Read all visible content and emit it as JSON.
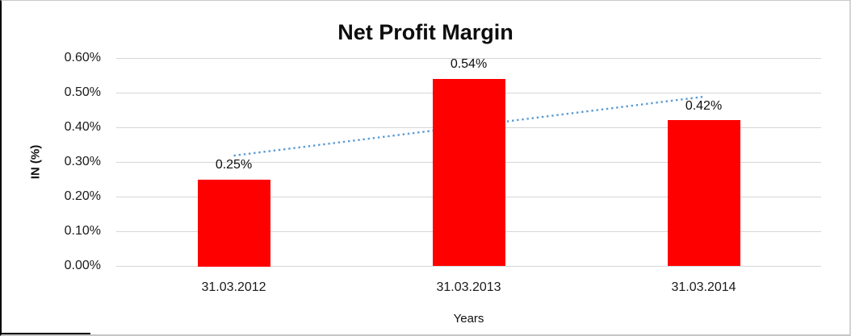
{
  "chart_data": {
    "type": "bar",
    "title": "Net Profit Margin",
    "xlabel": "Years",
    "ylabel": "IN (%)",
    "categories": [
      "31.03.2012",
      "31.03.2013",
      "31.03.2014"
    ],
    "values": [
      0.25,
      0.54,
      0.42
    ],
    "data_labels": [
      "0.25%",
      "0.54%",
      "0.42%"
    ],
    "yticks": [
      0.6,
      0.5,
      0.4,
      0.3,
      0.2,
      0.1,
      0.0
    ],
    "ytick_labels": [
      "0.60%",
      "0.50%",
      "0.40%",
      "0.30%",
      "0.20%",
      "0.10%",
      "0.00%"
    ],
    "ylim": [
      0,
      0.6
    ],
    "grid": true,
    "legend": false,
    "colors": {
      "bar": "#FF0000",
      "trendline": "#5B9BD5",
      "gridline": "#D6D6D6",
      "text": "#111111"
    },
    "trendline": {
      "type": "linear",
      "style": "dotted",
      "start_value": 0.3183,
      "end_value": 0.4883
    }
  }
}
